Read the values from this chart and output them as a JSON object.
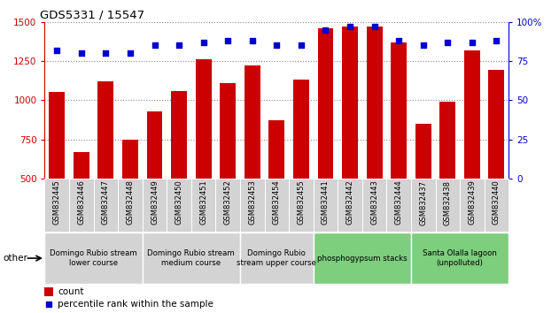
{
  "title": "GDS5331 / 15547",
  "samples": [
    "GSM832445",
    "GSM832446",
    "GSM832447",
    "GSM832448",
    "GSM832449",
    "GSM832450",
    "GSM832451",
    "GSM832452",
    "GSM832453",
    "GSM832454",
    "GSM832455",
    "GSM832441",
    "GSM832442",
    "GSM832443",
    "GSM832444",
    "GSM832437",
    "GSM832438",
    "GSM832439",
    "GSM832440"
  ],
  "counts": [
    1050,
    670,
    1120,
    750,
    930,
    1060,
    1260,
    1110,
    1220,
    870,
    1130,
    1460,
    1470,
    1470,
    1370,
    850,
    990,
    1320,
    1195
  ],
  "percentiles": [
    82,
    80,
    80,
    80,
    85,
    85,
    87,
    88,
    88,
    85,
    85,
    95,
    97,
    97,
    88,
    85,
    87,
    87,
    88
  ],
  "bar_color": "#cc0000",
  "dot_color": "#0000cc",
  "ylim_left": [
    500,
    1500
  ],
  "ylim_right": [
    0,
    100
  ],
  "yticks_left": [
    500,
    750,
    1000,
    1250,
    1500
  ],
  "yticks_right": [
    0,
    25,
    50,
    75,
    100
  ],
  "groups": [
    {
      "label": "Domingo Rubio stream\nlower course",
      "start": 0,
      "end": 4,
      "color": "#d3d3d3"
    },
    {
      "label": "Domingo Rubio stream\nmedium course",
      "start": 4,
      "end": 8,
      "color": "#d3d3d3"
    },
    {
      "label": "Domingo Rubio\nstream upper course",
      "start": 8,
      "end": 11,
      "color": "#d3d3d3"
    },
    {
      "label": "phosphogypsum stacks",
      "start": 11,
      "end": 15,
      "color": "#7dce7d"
    },
    {
      "label": "Santa Olalla lagoon\n(unpolluted)",
      "start": 15,
      "end": 19,
      "color": "#7dce7d"
    }
  ],
  "xticklabel_bg": "#d3d3d3",
  "left_axis_color": "#cc0000",
  "right_axis_color": "#0000cc",
  "legend_count_color": "#cc0000",
  "legend_pct_color": "#0000cc",
  "other_label": "other"
}
